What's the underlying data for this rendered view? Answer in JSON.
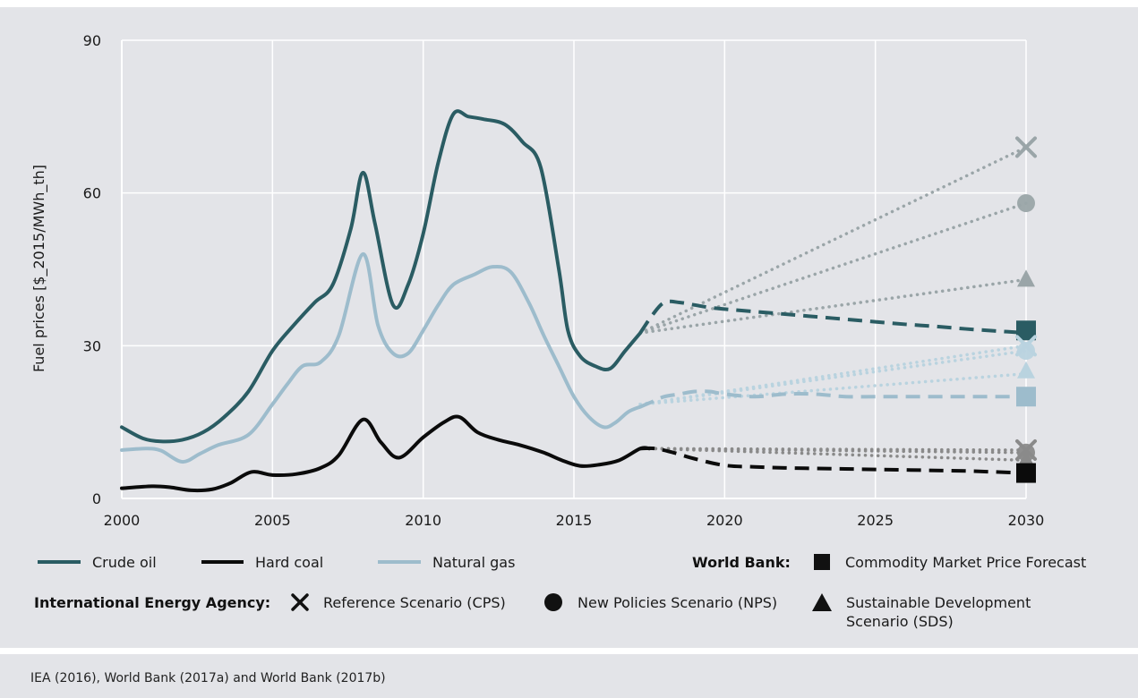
{
  "chart_data": {
    "type": "line",
    "ylabel": "Fuel prices [$_2015/MWh_th]",
    "xlabel": "",
    "xlim": [
      2000,
      2030
    ],
    "ylim": [
      0,
      90
    ],
    "x_ticks": [
      2000,
      2005,
      2010,
      2015,
      2020,
      2025,
      2030
    ],
    "y_ticks": [
      0,
      30,
      60,
      90
    ],
    "grid": true,
    "colors": {
      "crude_oil": "#2a5c63",
      "hard_coal": "#0b0b0b",
      "natural_gas": "#9dbccc",
      "crude_oil_scenario": "#9aa5a8",
      "hard_coal_scenario": "#8a8a8a",
      "natural_gas_scenario": "#b9d3df"
    },
    "series": [
      {
        "name": "Crude oil",
        "key": "crude_oil",
        "x": [
          2000,
          2000.7,
          2001.3,
          2002,
          2002.7,
          2003.4,
          2004.2,
          2005,
          2005.7,
          2006.4,
          2007,
          2007.6,
          2008,
          2008.4,
          2009,
          2009.5,
          2010,
          2010.5,
          2011,
          2011.5,
          2012,
          2012.7,
          2013.3,
          2013.9,
          2014.5,
          2014.8,
          2015.2,
          2015.7,
          2016.2,
          2016.7,
          2017.2
        ],
        "y": [
          14,
          11.8,
          11.2,
          11.5,
          13,
          16,
          21,
          29,
          34,
          38.5,
          42,
          53,
          64,
          54,
          38,
          42,
          52,
          66,
          75.5,
          75,
          74.5,
          73.5,
          70,
          65,
          45,
          33,
          28,
          26,
          25.5,
          29,
          32.5
        ]
      },
      {
        "name": "Hard coal",
        "key": "hard_coal",
        "x": [
          2000,
          2001,
          2001.6,
          2002.3,
          2003,
          2003.6,
          2004.3,
          2005,
          2005.8,
          2006.6,
          2007.2,
          2008,
          2008.6,
          2009.2,
          2010,
          2010.7,
          2011.2,
          2011.8,
          2012.5,
          2013.2,
          2014,
          2014.6,
          2015.2,
          2015.8,
          2016.5,
          2017.2,
          2017.5
        ],
        "y": [
          2,
          2.4,
          2.2,
          1.6,
          1.8,
          3,
          5.2,
          4.6,
          4.8,
          6,
          8.5,
          15.5,
          11,
          8,
          12,
          15,
          16,
          13,
          11.5,
          10.5,
          9,
          7.5,
          6.4,
          6.6,
          7.5,
          9.8,
          9.8
        ]
      },
      {
        "name": "Natural gas",
        "key": "natural_gas",
        "x": [
          2000,
          2000.8,
          2001.3,
          2002,
          2002.6,
          2003.2,
          2004.2,
          2005,
          2005.5,
          2006,
          2006.6,
          2007.2,
          2008,
          2008.5,
          2009,
          2009.5,
          2010,
          2010.5,
          2011,
          2011.7,
          2012.3,
          2012.9,
          2013.5,
          2014,
          2014.5,
          2015,
          2015.5,
          2016,
          2016.4,
          2016.8,
          2017.2
        ],
        "y": [
          9.5,
          9.8,
          9.4,
          7.2,
          8.8,
          10.5,
          12.5,
          18.5,
          22.5,
          26,
          26.8,
          32,
          48,
          34,
          28.5,
          28.5,
          33,
          38,
          42,
          44,
          45.5,
          44.5,
          38.5,
          32,
          26,
          20,
          16,
          14,
          15,
          17,
          18
        ]
      }
    ],
    "world_bank_forecast": [
      {
        "fuel": "Crude oil",
        "x": [
          2017.2,
          2017.6,
          2018,
          2018.5,
          2019,
          2019.5,
          2020,
          2021,
          2022,
          2023,
          2024,
          2025,
          2026,
          2027,
          2028,
          2029,
          2030
        ],
        "y": [
          32.5,
          36,
          38.5,
          38.5,
          38,
          37.5,
          37.2,
          36.7,
          36.2,
          35.7,
          35.2,
          34.7,
          34.2,
          33.8,
          33.3,
          32.9,
          32.5
        ]
      },
      {
        "fuel": "Natural gas",
        "x": [
          2017.2,
          2017.6,
          2018,
          2018.5,
          2019,
          2019.5,
          2020,
          2021,
          2022,
          2023,
          2024,
          2025,
          2026,
          2027,
          2028,
          2029,
          2030
        ],
        "y": [
          18,
          19,
          20,
          20.5,
          21,
          21,
          20.5,
          20,
          20.5,
          20.5,
          20,
          20,
          20,
          20,
          20,
          20,
          20
        ]
      },
      {
        "fuel": "Hard coal",
        "x": [
          2017.2,
          2017.7,
          2018.3,
          2019,
          2020,
          2021,
          2022,
          2023,
          2024,
          2025,
          2026,
          2027,
          2028,
          2029,
          2030
        ],
        "y": [
          9.8,
          9.8,
          9,
          7.8,
          6.5,
          6.2,
          6,
          5.9,
          5.8,
          5.7,
          5.6,
          5.5,
          5.4,
          5.2,
          5.0
        ]
      }
    ],
    "iea_scenarios": [
      {
        "fuel": "Crude oil",
        "scenario": "CPS",
        "x": [
          2017.2,
          2030
        ],
        "y": [
          32.5,
          69
        ]
      },
      {
        "fuel": "Crude oil",
        "scenario": "NPS",
        "x": [
          2017.2,
          2030
        ],
        "y": [
          32.5,
          58
        ]
      },
      {
        "fuel": "Crude oil",
        "scenario": "SDS",
        "x": [
          2017.2,
          2030
        ],
        "y": [
          32.5,
          43
        ]
      },
      {
        "fuel": "Natural gas",
        "scenario": "CPS",
        "x": [
          2017.2,
          2030
        ],
        "y": [
          18.5,
          30
        ]
      },
      {
        "fuel": "Natural gas",
        "scenario": "NPS",
        "x": [
          2017.2,
          2030
        ],
        "y": [
          18.5,
          29
        ]
      },
      {
        "fuel": "Natural gas",
        "scenario": "SDS",
        "x": [
          2017.2,
          2030
        ],
        "y": [
          18.5,
          24.5
        ]
      },
      {
        "fuel": "Hard coal",
        "scenario": "CPS",
        "x": [
          2017.5,
          2030
        ],
        "y": [
          9.8,
          9.5
        ]
      },
      {
        "fuel": "Hard coal",
        "scenario": "NPS",
        "x": [
          2017.5,
          2030
        ],
        "y": [
          9.8,
          9
        ]
      },
      {
        "fuel": "Hard coal",
        "scenario": "SDS",
        "x": [
          2017.5,
          2030
        ],
        "y": [
          9.8,
          7.5
        ]
      }
    ],
    "end_markers": [
      {
        "fuel": "Crude oil",
        "scenario": "CPS",
        "shape": "x",
        "y": 69
      },
      {
        "fuel": "Crude oil",
        "scenario": "NPS",
        "shape": "circle",
        "y": 58
      },
      {
        "fuel": "Crude oil",
        "scenario": "SDS",
        "shape": "triangle",
        "y": 43
      },
      {
        "fuel": "Crude oil",
        "scenario": "World Bank",
        "shape": "square",
        "y": 33
      },
      {
        "fuel": "Natural gas",
        "scenario": "CPS",
        "shape": "x",
        "y": 30
      },
      {
        "fuel": "Natural gas",
        "scenario": "NPS",
        "shape": "circle",
        "y": 29
      },
      {
        "fuel": "Natural gas",
        "scenario": "SDS",
        "shape": "triangle",
        "y": 25
      },
      {
        "fuel": "Natural gas",
        "scenario": "World Bank",
        "shape": "square",
        "y": 20
      },
      {
        "fuel": "Hard coal",
        "scenario": "CPS",
        "shape": "x",
        "y": 9.5
      },
      {
        "fuel": "Hard coal",
        "scenario": "NPS",
        "shape": "circle",
        "y": 9
      },
      {
        "fuel": "Hard coal",
        "scenario": "SDS",
        "shape": "triangle",
        "y": 7.5
      },
      {
        "fuel": "Hard coal",
        "scenario": "World Bank",
        "shape": "square",
        "y": 5
      }
    ]
  },
  "legend": {
    "crude_oil": "Crude oil",
    "hard_coal": "Hard coal",
    "natural_gas": "Natural gas",
    "world_bank_label": "World Bank:",
    "world_bank_item": "Commodity Market Price Forecast",
    "iea_label": "International Energy Agency:",
    "cps": "Reference Scenario (CPS)",
    "nps": "New Policies Scenario (NPS)",
    "sds_line1": "Sustainable Development",
    "sds_line2": "Scenario (SDS)"
  },
  "source": "IEA (2016), World Bank (2017a) and World Bank (2017b)"
}
